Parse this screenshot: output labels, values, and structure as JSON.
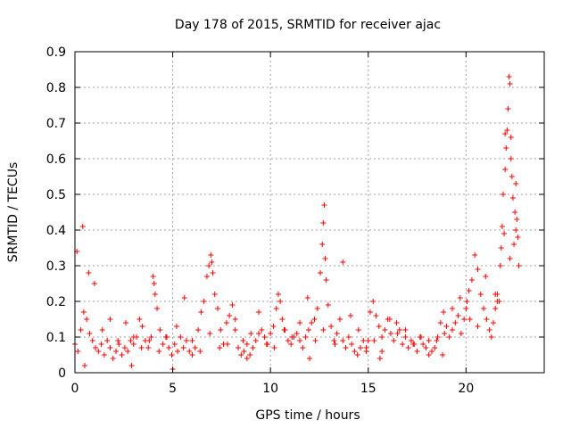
{
  "chart_data": {
    "type": "scatter",
    "title": "Day 178 of 2015, SRMTID for receiver ajac",
    "xlabel": "GPS time / hours",
    "ylabel": "SRMTID / TECUs",
    "xlim": [
      0,
      24
    ],
    "ylim": [
      0,
      0.9
    ],
    "xticks": [
      0,
      5,
      10,
      15,
      20
    ],
    "xtick_labels": [
      "0",
      "5",
      "10",
      "15",
      "20"
    ],
    "yticks": [
      0,
      0.1,
      0.2,
      0.3,
      0.4,
      0.5,
      0.6,
      0.7,
      0.8,
      0.9
    ],
    "ytick_labels": [
      "0",
      "0.1",
      "0.2",
      "0.3",
      "0.4",
      "0.5",
      "0.6",
      "0.7",
      "0.8",
      "0.9"
    ],
    "grid": true,
    "marker": "+",
    "color": "#ff0000",
    "series": [
      {
        "name": "SRMTID",
        "x": [
          0.0,
          0.15,
          0.3,
          0.45,
          0.6,
          0.75,
          0.9,
          1.05,
          1.2,
          1.35,
          1.5,
          1.65,
          1.8,
          1.95,
          2.1,
          2.25,
          2.4,
          2.55,
          2.7,
          2.85,
          3.0,
          3.15,
          3.3,
          3.45,
          3.6,
          3.75,
          3.9,
          4.0,
          4.05,
          4.1,
          4.2,
          4.35,
          4.5,
          4.65,
          4.8,
          4.95,
          5.1,
          5.25,
          5.4,
          5.55,
          5.7,
          5.85,
          6.0,
          6.15,
          6.3,
          6.45,
          6.6,
          6.75,
          6.85,
          6.95,
          7.0,
          7.05,
          7.15,
          7.3,
          7.45,
          7.6,
          7.75,
          7.9,
          8.05,
          8.2,
          8.35,
          8.5,
          8.65,
          8.8,
          8.95,
          9.1,
          9.25,
          9.4,
          9.55,
          9.7,
          9.85,
          10.0,
          10.15,
          10.3,
          10.4,
          10.5,
          10.6,
          10.75,
          10.9,
          11.05,
          11.2,
          11.35,
          11.5,
          11.65,
          11.8,
          11.95,
          12.1,
          12.25,
          12.4,
          12.55,
          12.65,
          12.7,
          12.75,
          12.8,
          12.85,
          12.95,
          13.1,
          13.25,
          13.4,
          13.55,
          13.7,
          13.85,
          14.0,
          14.15,
          14.3,
          14.45,
          14.6,
          14.75,
          14.9,
          15.0,
          15.1,
          15.25,
          15.4,
          15.55,
          15.7,
          15.85,
          16.0,
          16.15,
          16.3,
          16.45,
          16.6,
          16.75,
          16.9,
          17.05,
          17.2,
          17.35,
          17.5,
          17.65,
          17.8,
          17.95,
          18.1,
          18.25,
          18.4,
          18.55,
          18.7,
          18.85,
          19.0,
          19.15,
          19.3,
          19.45,
          19.6,
          19.75,
          19.9,
          20.0,
          20.05,
          20.15,
          20.3,
          20.45,
          20.6,
          20.75,
          20.9,
          21.05,
          21.2,
          21.3,
          21.4,
          21.5,
          21.6,
          21.7,
          21.75,
          21.8,
          21.85,
          21.9,
          22.0,
          22.05,
          22.1,
          22.15,
          22.2,
          22.25,
          22.3,
          22.35,
          22.4,
          22.45,
          22.5,
          22.55,
          22.6,
          22.65,
          22.7,
          0.1,
          0.4,
          0.7,
          1.0,
          1.4,
          1.8,
          2.2,
          2.6,
          3.0,
          3.4,
          3.8,
          4.3,
          4.7,
          5.2,
          5.6,
          6.0,
          6.4,
          6.9,
          7.4,
          7.8,
          8.2,
          8.6,
          9.0,
          9.4,
          9.8,
          10.2,
          10.7,
          11.1,
          11.5,
          11.9,
          12.3,
          12.7,
          13.3,
          13.7,
          14.1,
          14.5,
          14.9,
          15.3,
          15.7,
          16.1,
          16.5,
          16.9,
          17.3,
          17.7,
          18.1,
          18.5,
          18.9,
          19.3,
          19.7,
          20.2,
          20.6,
          21.0,
          21.5,
          21.95,
          22.25,
          22.55,
          0.5,
          2.9,
          5.0,
          8.8,
          12.0,
          15.6,
          18.8,
          21.6,
          22.0,
          22.3
        ],
        "y": [
          0.08,
          0.06,
          0.12,
          0.17,
          0.15,
          0.11,
          0.09,
          0.07,
          0.06,
          0.08,
          0.05,
          0.09,
          0.07,
          0.04,
          0.06,
          0.08,
          0.05,
          0.07,
          0.06,
          0.09,
          0.08,
          0.1,
          0.15,
          0.13,
          0.09,
          0.07,
          0.1,
          0.27,
          0.25,
          0.22,
          0.18,
          0.12,
          0.08,
          0.1,
          0.07,
          0.05,
          0.08,
          0.06,
          0.1,
          0.07,
          0.09,
          0.06,
          0.05,
          0.07,
          0.12,
          0.17,
          0.2,
          0.27,
          0.3,
          0.33,
          0.31,
          0.28,
          0.22,
          0.18,
          0.12,
          0.08,
          0.14,
          0.16,
          0.19,
          0.12,
          0.07,
          0.05,
          0.06,
          0.08,
          0.05,
          0.07,
          0.09,
          0.11,
          0.12,
          0.1,
          0.08,
          0.11,
          0.13,
          0.18,
          0.22,
          0.2,
          0.15,
          0.12,
          0.09,
          0.08,
          0.1,
          0.11,
          0.09,
          0.07,
          0.1,
          0.12,
          0.14,
          0.15,
          0.18,
          0.28,
          0.36,
          0.42,
          0.47,
          0.32,
          0.26,
          0.19,
          0.13,
          0.09,
          0.11,
          0.15,
          0.09,
          0.07,
          0.1,
          0.08,
          0.06,
          0.05,
          0.07,
          0.09,
          0.06,
          0.09,
          0.17,
          0.2,
          0.16,
          0.13,
          0.1,
          0.12,
          0.15,
          0.11,
          0.09,
          0.14,
          0.12,
          0.08,
          0.1,
          0.07,
          0.09,
          0.08,
          0.06,
          0.1,
          0.08,
          0.07,
          0.09,
          0.06,
          0.07,
          0.1,
          0.14,
          0.17,
          0.13,
          0.1,
          0.12,
          0.14,
          0.16,
          0.11,
          0.15,
          0.18,
          0.2,
          0.23,
          0.26,
          0.33,
          0.29,
          0.22,
          0.18,
          0.15,
          0.12,
          0.1,
          0.14,
          0.18,
          0.22,
          0.2,
          0.3,
          0.35,
          0.41,
          0.5,
          0.57,
          0.63,
          0.68,
          0.74,
          0.83,
          0.81,
          0.66,
          0.55,
          0.49,
          0.36,
          0.45,
          0.53,
          0.43,
          0.38,
          0.3,
          0.34,
          0.41,
          0.28,
          0.25,
          0.12,
          0.15,
          0.09,
          0.14,
          0.1,
          0.07,
          0.09,
          0.06,
          0.1,
          0.13,
          0.21,
          0.09,
          0.06,
          0.11,
          0.07,
          0.08,
          0.15,
          0.09,
          0.11,
          0.17,
          0.08,
          0.07,
          0.12,
          0.1,
          0.14,
          0.21,
          0.09,
          0.12,
          0.08,
          0.31,
          0.16,
          0.12,
          0.07,
          0.09,
          0.06,
          0.15,
          0.11,
          0.12,
          0.08,
          0.1,
          0.05,
          0.09,
          0.11,
          0.18,
          0.21,
          0.15,
          0.13,
          0.27,
          0.22,
          0.39,
          0.32,
          0.4,
          0.02,
          0.02,
          0.01,
          0.04,
          0.04,
          0.04,
          0.05,
          0.2,
          0.67,
          0.6
        ]
      }
    ]
  }
}
